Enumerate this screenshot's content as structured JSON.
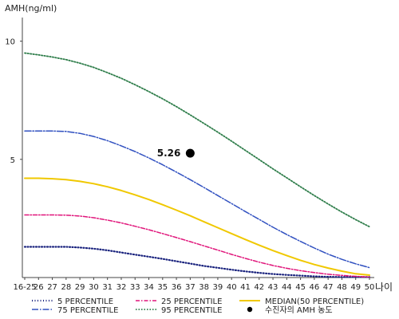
{
  "chart_data": {
    "type": "line",
    "ylabel": "AMH(ng/ml)",
    "xlabel": "나이",
    "ylim": [
      0,
      11
    ],
    "yticks": [
      "10",
      "5"
    ],
    "ytick_values": [
      10,
      5
    ],
    "categories": [
      "16-25",
      "26",
      "27",
      "28",
      "29",
      "30",
      "31",
      "32",
      "33",
      "34",
      "35",
      "36",
      "37",
      "38",
      "39",
      "40",
      "41",
      "42",
      "43",
      "44",
      "45",
      "46",
      "47",
      "48",
      "49",
      "50"
    ],
    "series": [
      {
        "name": "5 PERCENTILE",
        "color": "#1a237e",
        "dash": "1,2.5",
        "width": 2.2,
        "values": [
          1.3,
          1.3,
          1.3,
          1.3,
          1.27,
          1.22,
          1.15,
          1.06,
          0.97,
          0.88,
          0.79,
          0.69,
          0.59,
          0.49,
          0.41,
          0.33,
          0.26,
          0.2,
          0.15,
          0.11,
          0.08,
          0.05,
          0.03,
          0.02,
          0.02,
          0.02
        ]
      },
      {
        "name": "25 PERCENTILE",
        "color": "#e0147a",
        "dash": "5,2,1.5,2",
        "width": 1.5,
        "values": [
          2.65,
          2.65,
          2.65,
          2.64,
          2.6,
          2.53,
          2.43,
          2.31,
          2.17,
          2.02,
          1.86,
          1.69,
          1.52,
          1.34,
          1.16,
          0.98,
          0.81,
          0.65,
          0.51,
          0.39,
          0.29,
          0.21,
          0.14,
          0.09,
          0.05,
          0.02
        ]
      },
      {
        "name": "MEDIAN(50 PERCENTILE)",
        "color": "#f0c800",
        "dash": "",
        "width": 2,
        "values": [
          4.2,
          4.2,
          4.18,
          4.14,
          4.07,
          3.97,
          3.84,
          3.68,
          3.5,
          3.3,
          3.08,
          2.85,
          2.61,
          2.36,
          2.11,
          1.86,
          1.61,
          1.37,
          1.14,
          0.93,
          0.73,
          0.55,
          0.4,
          0.27,
          0.16,
          0.1
        ]
      },
      {
        "name": "75 PERCENTILE",
        "color": "#3050c0",
        "dash": "8,2,1.5,2",
        "width": 1.5,
        "values": [
          6.2,
          6.2,
          6.2,
          6.18,
          6.1,
          5.97,
          5.79,
          5.57,
          5.33,
          5.06,
          4.77,
          4.46,
          4.14,
          3.81,
          3.47,
          3.13,
          2.79,
          2.46,
          2.13,
          1.82,
          1.53,
          1.25,
          0.99,
          0.77,
          0.58,
          0.42
        ]
      },
      {
        "name": "95 PERCENTILE",
        "color": "#2e7d4a",
        "dash": "1.5,2",
        "width": 1.8,
        "values": [
          9.5,
          9.42,
          9.33,
          9.22,
          9.07,
          8.89,
          8.67,
          8.43,
          8.16,
          7.87,
          7.56,
          7.23,
          6.88,
          6.52,
          6.15,
          5.77,
          5.38,
          4.99,
          4.6,
          4.22,
          3.84,
          3.47,
          3.11,
          2.77,
          2.45,
          2.15
        ]
      }
    ],
    "marker": {
      "name": "수진자의 AMH 농도",
      "x": "37",
      "y": 5.26,
      "label": "5.26",
      "color": "#000000"
    },
    "legend": {
      "placement": "bottom",
      "order": [
        "5 PERCENTILE",
        "25 PERCENTILE",
        "MEDIAN(50 PERCENTILE)",
        "75 PERCENTILE",
        "95 PERCENTILE",
        "수진자의 AMH 농도"
      ]
    }
  }
}
